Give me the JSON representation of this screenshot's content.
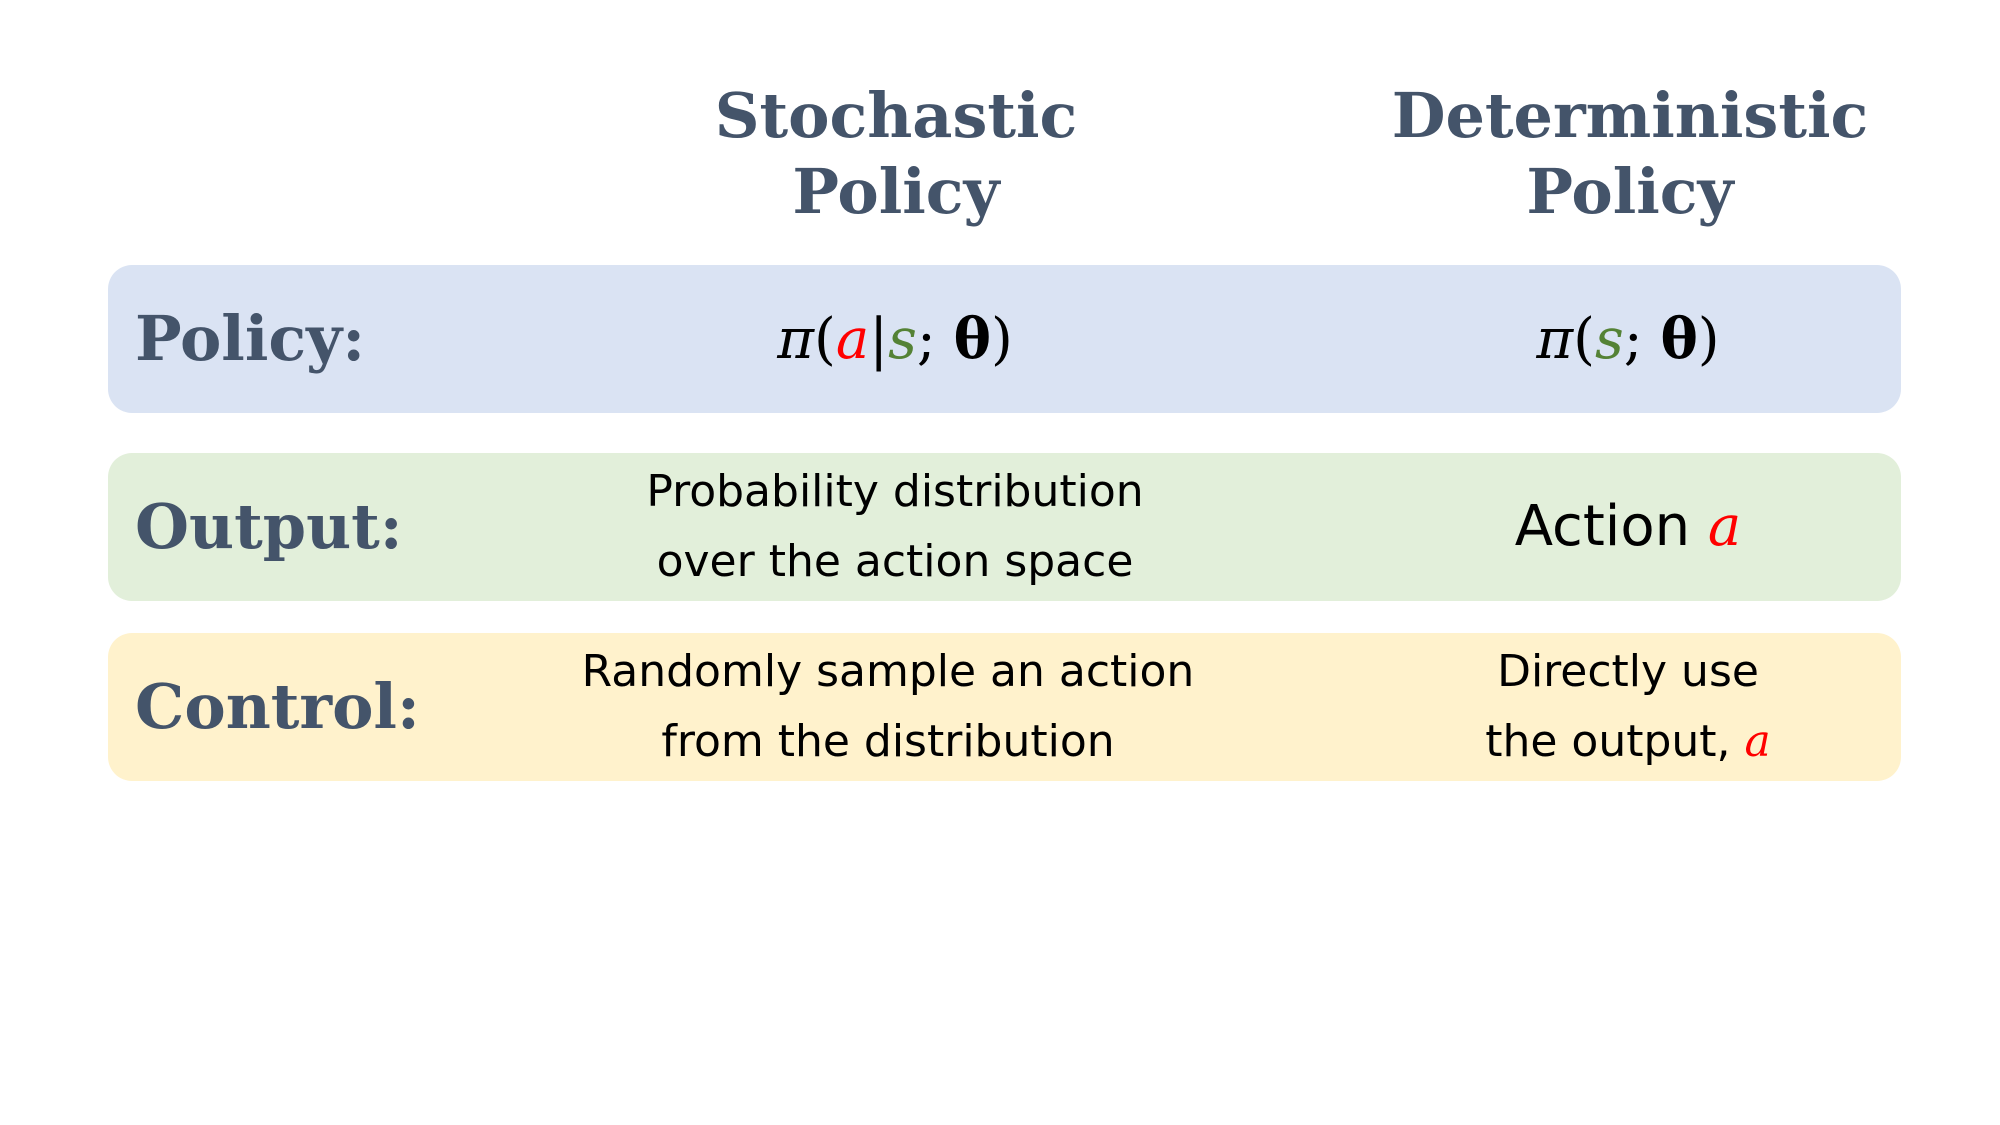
{
  "headers": {
    "stochastic": {
      "line1": "Stochastic",
      "line2": "Policy"
    },
    "deterministic": {
      "line1": "Deterministic",
      "line2": "Policy"
    }
  },
  "rows": {
    "policy": {
      "label": "Policy:",
      "stochastic": {
        "pi": "π",
        "open": "(",
        "action": "a",
        "bar": "|",
        "state": "s",
        "semi": ";",
        "theta": "θ",
        "close": ")"
      },
      "deterministic": {
        "pi": "π",
        "open": "(",
        "state": "s",
        "semi": ";",
        "theta": "θ",
        "close": ")"
      }
    },
    "output": {
      "label": "Output:",
      "stochastic": {
        "line1": "Probability distribution",
        "line2": "over the action space"
      },
      "deterministic": {
        "text": "Action ",
        "action": "a"
      }
    },
    "control": {
      "label": "Control:",
      "stochastic": {
        "line1": "Randomly sample an action",
        "line2": "from the distribution"
      },
      "deterministic": {
        "line1": "Directly use",
        "line2": "the output, ",
        "action": "a"
      }
    }
  },
  "colors": {
    "header_text": "#44546a",
    "policy_row_bg": "#dae3f3",
    "output_row_bg": "#e2efda",
    "control_row_bg": "#fff2cc",
    "action_symbol": "#ff0000",
    "state_symbol": "#548235"
  }
}
